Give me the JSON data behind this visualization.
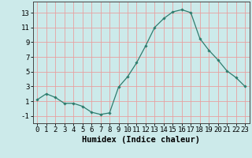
{
  "x": [
    0,
    1,
    2,
    3,
    4,
    5,
    6,
    7,
    8,
    9,
    10,
    11,
    12,
    13,
    14,
    15,
    16,
    17,
    18,
    19,
    20,
    21,
    22,
    23
  ],
  "y": [
    1.2,
    2.0,
    1.5,
    0.7,
    0.7,
    0.3,
    -0.5,
    -0.8,
    -0.6,
    2.9,
    4.3,
    6.2,
    8.5,
    11.0,
    12.2,
    13.1,
    13.4,
    13.0,
    9.5,
    7.9,
    6.6,
    5.1,
    4.2,
    3.0
  ],
  "line_color": "#2e7d6e",
  "marker": "D",
  "marker_size": 1.8,
  "bg_color": "#cceaea",
  "grid_color": "#e8a0a0",
  "xlabel": "Humidex (Indice chaleur)",
  "xlim": [
    -0.5,
    23.5
  ],
  "ylim": [
    -2.0,
    14.5
  ],
  "yticks": [
    -1,
    1,
    3,
    5,
    7,
    9,
    11,
    13
  ],
  "xtick_labels": [
    "0",
    "1",
    "2",
    "3",
    "4",
    "5",
    "6",
    "7",
    "8",
    "9",
    "10",
    "11",
    "12",
    "13",
    "14",
    "15",
    "16",
    "17",
    "18",
    "19",
    "20",
    "21",
    "22",
    "23"
  ],
  "xlabel_fontsize": 7.5,
  "tick_fontsize": 6.5,
  "linewidth": 0.9
}
